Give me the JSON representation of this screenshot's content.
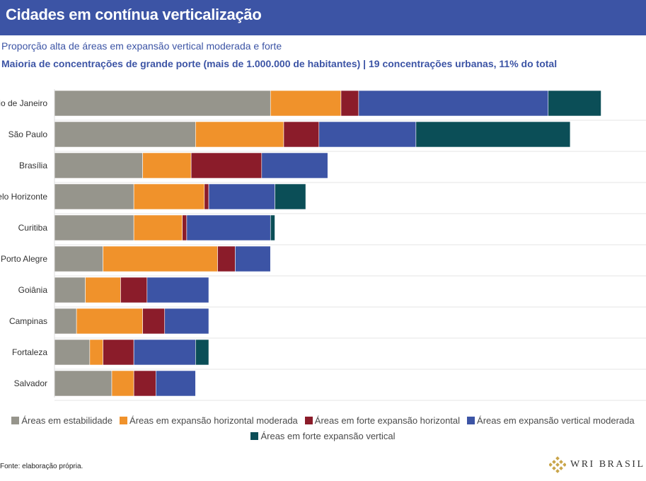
{
  "header": {
    "title": "Cidades em contínua verticalização"
  },
  "subtitle": "Proporção alta de áreas em expansão vertical moderada e forte",
  "subtitle2": "Maioria de concentrações de grande porte (mais de 1.000.000 de habitantes) | 19 concentrações urbanas, 11% do total",
  "source": "Fonte: elaboração própria.",
  "logo": {
    "text": "WRI BRASIL",
    "icon": "wri-diamond-logo-icon"
  },
  "colors": {
    "estabilidade": "#96958c",
    "horizontal_moderada": "#f0922b",
    "forte_horizontal": "#8b1c2a",
    "vertical_moderada": "#3c54a5",
    "forte_vertical": "#0b4e57"
  },
  "chart_data": {
    "type": "bar",
    "orientation": "horizontal",
    "stacked": true,
    "categories": [
      "Rio de Janeiro",
      "São Paulo",
      "Brasília",
      "Belo Horizonte",
      "Curitiba",
      "Porto Alegre",
      "Goiânia",
      "Campinas",
      "Fortaleza",
      "Salvador"
    ],
    "series": [
      {
        "name": "Áreas em estabilidade",
        "color": "#96958c",
        "values": [
          49,
          32,
          20,
          18,
          18,
          11,
          7,
          5,
          8,
          13
        ]
      },
      {
        "name": "Áreas em expansão horizontal moderada",
        "color": "#f0922b",
        "values": [
          16,
          20,
          11,
          16,
          11,
          26,
          8,
          15,
          3,
          5
        ]
      },
      {
        "name": "Áreas em forte expansão horizontal",
        "color": "#8b1c2a",
        "values": [
          4,
          8,
          16,
          1,
          1,
          4,
          6,
          5,
          7,
          5
        ]
      },
      {
        "name": "Áreas em expansão vertical moderada",
        "color": "#3c54a5",
        "values": [
          43,
          22,
          15,
          15,
          19,
          8,
          14,
          10,
          14,
          9
        ]
      },
      {
        "name": "Áreas em forte expansão vertical",
        "color": "#0b4e57",
        "values": [
          12,
          35,
          0,
          7,
          1,
          0,
          0,
          0,
          3,
          0
        ]
      }
    ],
    "legend": "bottom",
    "grid": true
  }
}
